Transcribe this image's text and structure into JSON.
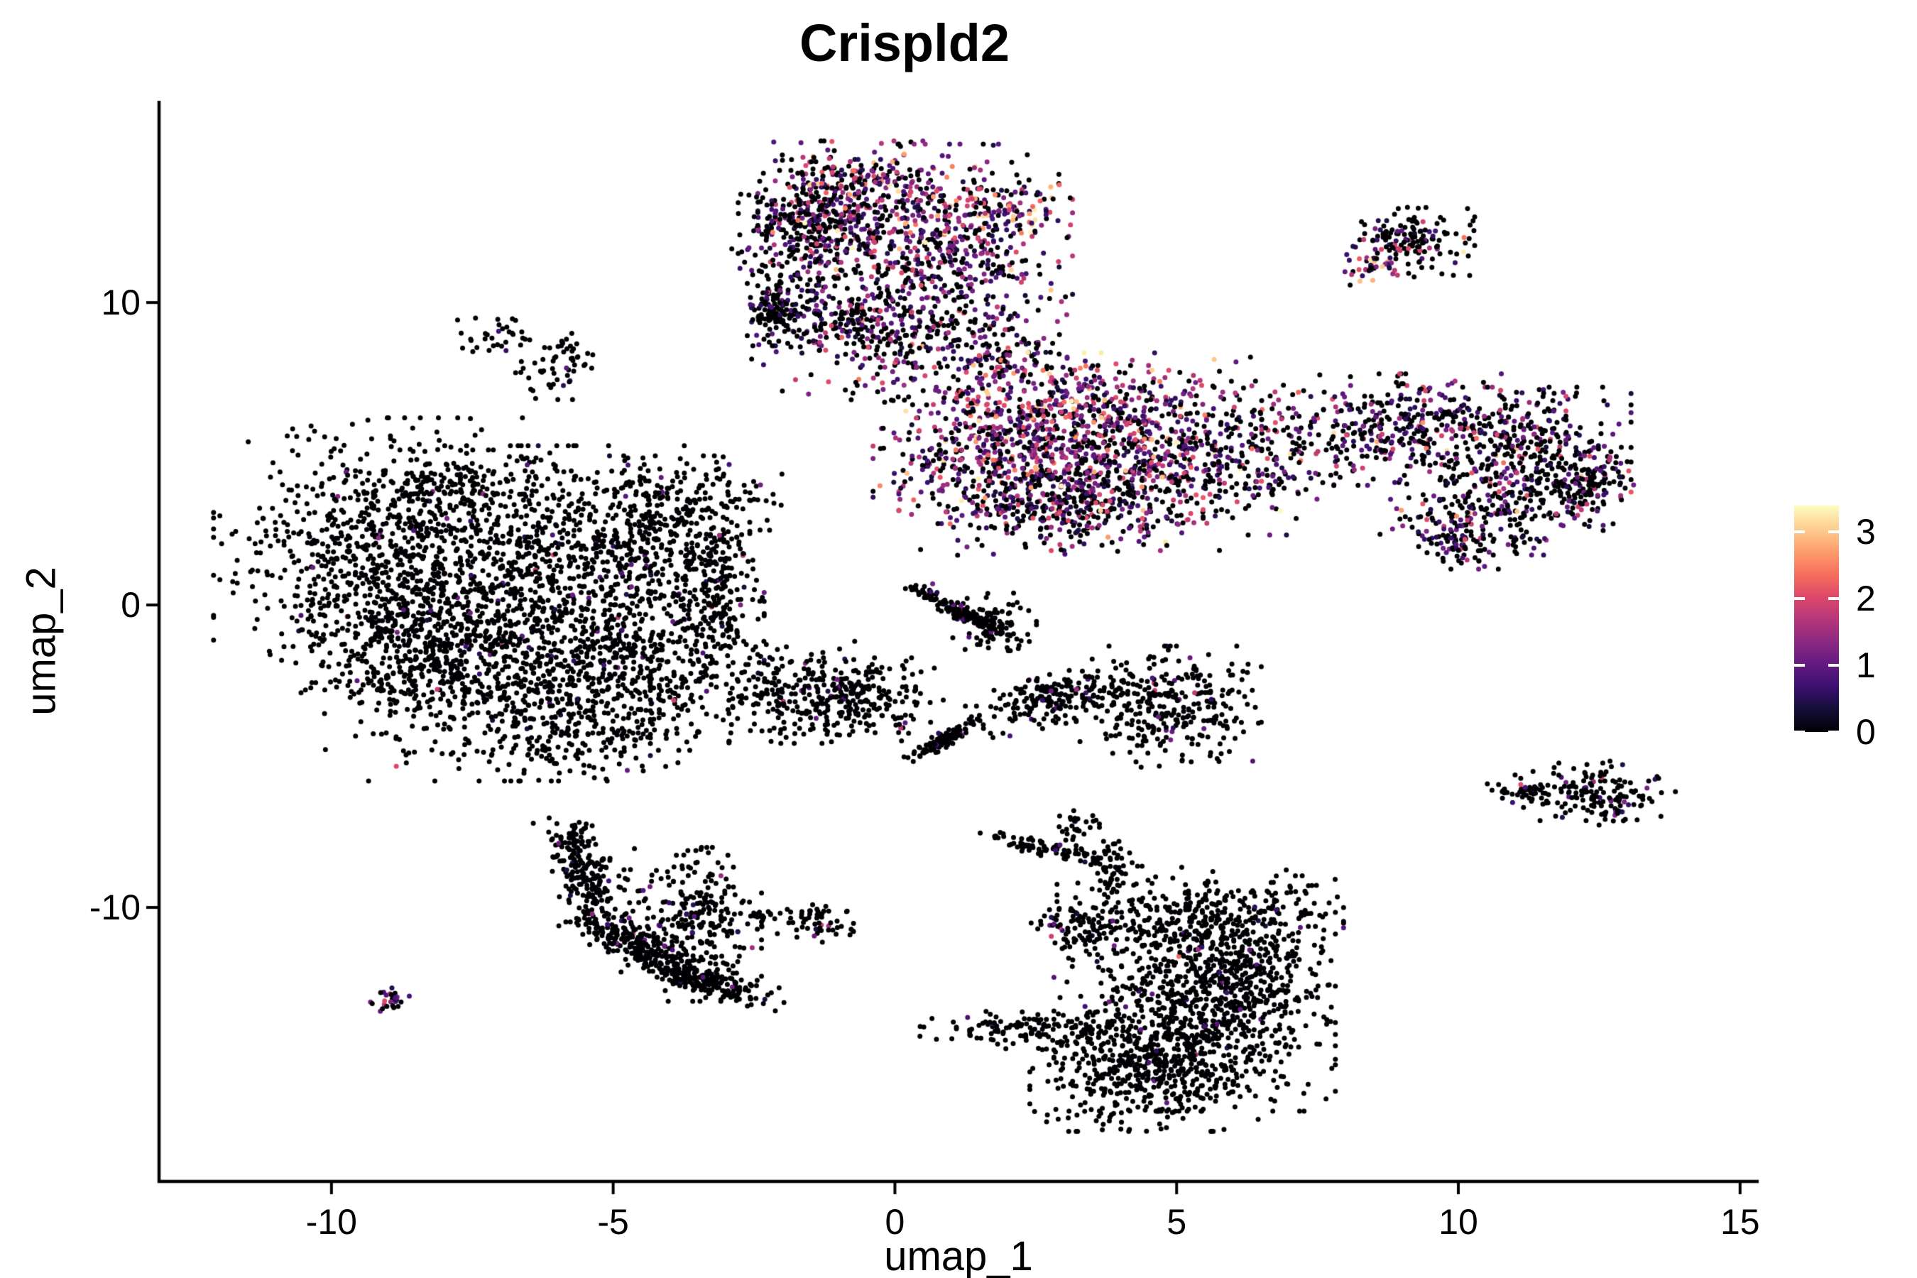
{
  "figure": {
    "title": "Crispld2",
    "x_axis_label": "umap_1",
    "y_axis_label": "umap_2",
    "background_color": "#ffffff",
    "axis_color": "#000000"
  },
  "legend": {
    "tick_labels": [
      "0",
      "1",
      "2",
      "3"
    ],
    "tick_values": [
      0,
      1,
      2,
      3
    ],
    "max_value": 3.39,
    "tick_color": "#ffffff"
  },
  "chart_data": {
    "type": "scatter",
    "title": "Crispld2",
    "xlabel": "umap_1",
    "ylabel": "umap_2",
    "xlim": [
      -13.06,
      15.33
    ],
    "ylim": [
      -19.06,
      16.67
    ],
    "x_ticks": [
      -10,
      -5,
      0,
      5,
      10,
      15
    ],
    "y_ticks": [
      10,
      0,
      -10
    ],
    "grid": false,
    "point_radius_px": 3.5,
    "color_scale": {
      "name": "magma",
      "min": 0,
      "max": 3.4
    },
    "colormap_stops": [
      [
        0.0,
        "#000004"
      ],
      [
        0.1,
        "#140e36"
      ],
      [
        0.2,
        "#3b0f70"
      ],
      [
        0.3,
        "#641a80"
      ],
      [
        0.4,
        "#8c2981"
      ],
      [
        0.5,
        "#b73779"
      ],
      [
        0.6,
        "#de4968"
      ],
      [
        0.7,
        "#f7705c"
      ],
      [
        0.8,
        "#fe9f6d"
      ],
      [
        0.9,
        "#fece91"
      ],
      [
        1.0,
        "#fcfdbf"
      ]
    ],
    "value_bins": {
      "zero": 0,
      "low": [
        0.3,
        1.15
      ],
      "mid": [
        1.15,
        2.15
      ],
      "high": [
        2.15,
        3.4
      ]
    },
    "clusters": [
      {
        "id": "top-a1",
        "x": -0.88,
        "y": 12.96,
        "sx": 0.69,
        "sy": 1.06,
        "rot": 0,
        "n": 350,
        "mix": [
          0.45,
          0.3,
          0.2,
          0.05
        ]
      },
      {
        "id": "top-a2",
        "x": 0.88,
        "y": 11.55,
        "sx": 1.01,
        "sy": 1.64,
        "rot": 0,
        "n": 550,
        "mix": [
          0.42,
          0.31,
          0.23,
          0.04
        ]
      },
      {
        "id": "top-a3",
        "x": -1.77,
        "y": 12.25,
        "sx": 0.5,
        "sy": 1.17,
        "rot": 0,
        "n": 220,
        "mix": [
          0.75,
          0.18,
          0.06,
          0.01
        ]
      },
      {
        "id": "top-a4",
        "x": 0.0,
        "y": 8.97,
        "sx": 1.13,
        "sy": 1.17,
        "rot": 0,
        "n": 280,
        "mix": [
          0.55,
          0.29,
          0.14,
          0.02
        ]
      },
      {
        "id": "top-tail",
        "x": -2.17,
        "y": 9.74,
        "sx": 0.2,
        "sy": 0.52,
        "rot": 0,
        "n": 110,
        "mix": [
          0.8,
          0.15,
          0.05,
          0
        ]
      },
      {
        "id": "top-trail",
        "x": -1.13,
        "y": 9.55,
        "sx": 0.5,
        "sy": 0.59,
        "rot": 0,
        "n": 90,
        "mix": [
          0.6,
          0.3,
          0.1,
          0
        ]
      },
      {
        "id": "top-edge-hot",
        "x": -0.53,
        "y": 13.94,
        "sx": 0.61,
        "sy": 0.33,
        "rot": 0,
        "n": 70,
        "mix": [
          0.15,
          0.25,
          0.35,
          0.25
        ]
      },
      {
        "id": "top-right-edge",
        "x": 1.7,
        "y": 12.96,
        "sx": 0.76,
        "sy": 0.59,
        "rot": 0,
        "n": 120,
        "mix": [
          0.25,
          0.3,
          0.3,
          0.15
        ]
      },
      {
        "id": "tr-small",
        "x": 9.21,
        "y": 12.02,
        "sx": 0.48,
        "sy": 0.52,
        "rot": 0,
        "n": 150,
        "mix": [
          0.72,
          0.2,
          0.07,
          0.01
        ]
      },
      {
        "id": "tr-small-hot",
        "x": 8.55,
        "y": 11.13,
        "sx": 0.25,
        "sy": 0.28,
        "rot": 0,
        "n": 35,
        "mix": [
          0.15,
          0.3,
          0.3,
          0.25
        ]
      },
      {
        "id": "mid-c1",
        "x": 2.02,
        "y": 5.45,
        "sx": 1.07,
        "sy": 1.29,
        "rot": 0,
        "n": 650,
        "mix": [
          0.36,
          0.3,
          0.26,
          0.08
        ]
      },
      {
        "id": "mid-c2",
        "x": 3.78,
        "y": 4.86,
        "sx": 0.88,
        "sy": 1.36,
        "rot": 0,
        "n": 450,
        "mix": [
          0.42,
          0.3,
          0.24,
          0.04
        ]
      },
      {
        "id": "mid-c3-hot",
        "x": 3.47,
        "y": 6.85,
        "sx": 0.82,
        "sy": 0.66,
        "rot": 0,
        "n": 100,
        "mix": [
          0.2,
          0.25,
          0.3,
          0.25
        ]
      },
      {
        "id": "mid-c4",
        "x": 2.77,
        "y": 3.22,
        "sx": 1.2,
        "sy": 0.7,
        "rot": 0,
        "n": 260,
        "mix": [
          0.58,
          0.27,
          0.13,
          0.02
        ]
      },
      {
        "id": "mid-c5",
        "x": 6.24,
        "y": 4.86,
        "sx": 0.82,
        "sy": 1.13,
        "rot": 0,
        "n": 210,
        "mix": [
          0.55,
          0.25,
          0.17,
          0.03
        ]
      },
      {
        "id": "mid-c6",
        "x": 9.21,
        "y": 5.8,
        "sx": 1.2,
        "sy": 0.82,
        "rot": 0,
        "n": 420,
        "mix": [
          0.57,
          0.27,
          0.14,
          0.02
        ]
      },
      {
        "id": "mid-c7",
        "x": 11.22,
        "y": 5.09,
        "sx": 0.82,
        "sy": 0.94,
        "rot": 0,
        "n": 300,
        "mix": [
          0.62,
          0.24,
          0.12,
          0.02
        ]
      },
      {
        "id": "mid-c8",
        "x": 12.3,
        "y": 4.04,
        "sx": 0.4,
        "sy": 0.61,
        "rot": 0,
        "n": 130,
        "mix": [
          0.7,
          0.2,
          0.09,
          0.01
        ]
      },
      {
        "id": "mid-c9",
        "x": 10.59,
        "y": 2.98,
        "sx": 0.88,
        "sy": 0.59,
        "rot": 0,
        "n": 180,
        "mix": [
          0.62,
          0.25,
          0.11,
          0.02
        ]
      },
      {
        "id": "mid-c10",
        "x": 10.15,
        "y": 2.04,
        "sx": 0.38,
        "sy": 0.38,
        "rot": 0,
        "n": 80,
        "mix": [
          0.7,
          0.2,
          0.1,
          0
        ]
      },
      {
        "id": "mid-c11-hot",
        "x": 5.55,
        "y": 6.74,
        "sx": 1.01,
        "sy": 0.7,
        "rot": 0,
        "n": 70,
        "mix": [
          0.25,
          0.25,
          0.3,
          0.2
        ]
      },
      {
        "id": "mid-c12",
        "x": 5.04,
        "y": 4.51,
        "sx": 0.5,
        "sy": 0.94,
        "rot": 0,
        "n": 90,
        "mix": [
          0.5,
          0.25,
          0.2,
          0.05
        ]
      },
      {
        "id": "left-d1",
        "x": -8.83,
        "y": 1.69,
        "sx": 1.45,
        "sy": 2.0,
        "rot": 0,
        "n": 850,
        "mix": [
          0.975,
          0.02,
          0.005,
          0
        ]
      },
      {
        "id": "left-d2",
        "x": -6.31,
        "y": 0.52,
        "sx": 1.45,
        "sy": 2.11,
        "rot": 0,
        "n": 750,
        "mix": [
          0.975,
          0.02,
          0.005,
          0
        ]
      },
      {
        "id": "left-d3",
        "x": -4.54,
        "y": 1.69,
        "sx": 1.01,
        "sy": 1.41,
        "rot": 0,
        "n": 350,
        "mix": [
          0.97,
          0.025,
          0.005,
          0
        ]
      },
      {
        "id": "left-d4",
        "x": -7.31,
        "y": -2.65,
        "sx": 1.32,
        "sy": 1.41,
        "rot": 0,
        "n": 450,
        "mix": [
          0.975,
          0.02,
          0.005,
          0
        ]
      },
      {
        "id": "left-d5",
        "x": -4.79,
        "y": -2.42,
        "sx": 0.82,
        "sy": 1.06,
        "rot": 0,
        "n": 260,
        "mix": [
          0.97,
          0.025,
          0.005,
          0
        ]
      },
      {
        "id": "left-d6",
        "x": -3.22,
        "y": 0.05,
        "sx": 0.4,
        "sy": 1.53,
        "rot": 0,
        "n": 220,
        "mix": [
          0.94,
          0.045,
          0.015,
          0
        ]
      },
      {
        "id": "left-d7",
        "x": -3.85,
        "y": 3.45,
        "sx": 0.82,
        "sy": 0.66,
        "rot": 0,
        "n": 150,
        "mix": [
          0.96,
          0.03,
          0.01,
          0
        ]
      },
      {
        "id": "left-d8",
        "x": -5.42,
        "y": -4.41,
        "sx": 1.07,
        "sy": 0.7,
        "rot": 0,
        "n": 130,
        "mix": [
          0.97,
          0.025,
          0.005,
          0
        ]
      },
      {
        "id": "left-d9",
        "x": -7.69,
        "y": 3.8,
        "sx": 1.01,
        "sy": 0.59,
        "rot": 0,
        "n": 150,
        "mix": [
          0.975,
          0.02,
          0.005,
          0
        ]
      },
      {
        "id": "left-d10",
        "x": -8.83,
        "y": -1.13,
        "sx": 0.76,
        "sy": 0.94,
        "rot": 0,
        "n": 200,
        "mix": [
          0.975,
          0.02,
          0.005,
          0
        ]
      },
      {
        "id": "chain-e1",
        "x": -1.77,
        "y": -2.89,
        "sx": 0.95,
        "sy": 0.75,
        "rot": 0,
        "n": 280,
        "mix": [
          0.95,
          0.04,
          0.01,
          0
        ]
      },
      {
        "id": "chain-e2",
        "x": -0.32,
        "y": -3.12,
        "sx": 0.57,
        "sy": 0.61,
        "rot": 0,
        "n": 130,
        "mix": [
          0.94,
          0.04,
          0.02,
          0
        ]
      },
      {
        "id": "streak-e3",
        "x": 1.28,
        "y": -0.34,
        "sx": 0.62,
        "sy": 0.1,
        "rot": -45,
        "n": 150,
        "mix": [
          0.96,
          0.03,
          0.01,
          0
        ]
      },
      {
        "id": "blob-e4",
        "x": 1.77,
        "y": -0.66,
        "sx": 0.33,
        "sy": 0.47,
        "rot": 0,
        "n": 70,
        "mix": [
          0.95,
          0.05,
          0,
          0
        ]
      },
      {
        "id": "streak-e5",
        "x": 0.88,
        "y": -4.46,
        "sx": 0.4,
        "sy": 0.1,
        "rot": 48,
        "n": 110,
        "mix": [
          0.97,
          0.03,
          0,
          0
        ]
      },
      {
        "id": "band-e6",
        "x": 2.84,
        "y": -3.12,
        "sx": 0.7,
        "sy": 0.35,
        "rot": 29,
        "n": 200,
        "mix": [
          0.95,
          0.04,
          0.01,
          0
        ]
      },
      {
        "id": "mid-f1",
        "x": 4.86,
        "y": -3.36,
        "sx": 0.73,
        "sy": 0.89,
        "rot": 0,
        "n": 300,
        "mix": [
          0.96,
          0.03,
          0.01,
          0
        ]
      },
      {
        "id": "hook-g1a",
        "x": -5.4,
        "y": -9.3,
        "sx": 0.25,
        "sy": 1.0,
        "rot": 12,
        "n": 160,
        "mix": [
          0.97,
          0.025,
          0.005,
          0
        ]
      },
      {
        "id": "hook-g1b",
        "x": -4.51,
        "y": -11.27,
        "sx": 0.75,
        "sy": 0.22,
        "rot": -47,
        "n": 200,
        "mix": [
          0.97,
          0.025,
          0.005,
          0
        ]
      },
      {
        "id": "hook-g1c",
        "x": -3.38,
        "y": -12.44,
        "sx": 0.7,
        "sy": 0.2,
        "rot": -29,
        "n": 180,
        "mix": [
          0.97,
          0.025,
          0.005,
          0
        ]
      },
      {
        "id": "hook-g2",
        "x": -3.38,
        "y": -10.56,
        "sx": 0.45,
        "sy": 1.13,
        "rot": 0,
        "n": 220,
        "mix": [
          0.965,
          0.03,
          0.005,
          0
        ]
      },
      {
        "id": "hook-g3",
        "x": -4.48,
        "y": -9.86,
        "sx": 0.66,
        "sy": 0.99,
        "rot": 0,
        "n": 80,
        "mix": [
          0.93,
          0.05,
          0.02,
          0
        ]
      },
      {
        "id": "hook-g4",
        "x": -5.8,
        "y": -7.98,
        "sx": 0.2,
        "sy": 0.47,
        "rot": 0,
        "n": 60,
        "mix": [
          0.95,
          0.05,
          0,
          0
        ]
      },
      {
        "id": "dash-h1",
        "x": -1.39,
        "y": -10.45,
        "sx": 0.33,
        "sy": 0.31,
        "rot": 0,
        "n": 60,
        "mix": [
          0.85,
          0.08,
          0.07,
          0
        ]
      },
      {
        "id": "dash-h2",
        "x": -2.5,
        "y": -10.28,
        "sx": 0.18,
        "sy": 0.16,
        "rot": 0,
        "n": 16,
        "mix": [
          1.0,
          0,
          0,
          0
        ]
      },
      {
        "id": "br-i1",
        "x": 5.42,
        "y": -10.21,
        "sx": 1.13,
        "sy": 0.7,
        "rot": 0,
        "n": 340,
        "mix": [
          0.975,
          0.02,
          0.005,
          0
        ]
      },
      {
        "id": "br-i2",
        "x": 3.23,
        "y": -10.66,
        "sx": 0.45,
        "sy": 0.31,
        "rot": 0,
        "n": 80,
        "mix": [
          0.94,
          0.04,
          0.02,
          0
        ]
      },
      {
        "id": "br-i3",
        "x": 2.8,
        "y": -8.08,
        "sx": 0.62,
        "sy": 0.12,
        "rot": -21,
        "n": 90,
        "mix": [
          0.96,
          0.03,
          0.01,
          0
        ]
      },
      {
        "id": "br-i4",
        "x": 3.18,
        "y": -7.37,
        "sx": 0.2,
        "sy": 0.26,
        "rot": 0,
        "n": 30,
        "mix": [
          0.97,
          0.03,
          0,
          0
        ]
      },
      {
        "id": "br-i5",
        "x": 3.86,
        "y": -8.83,
        "sx": 0.16,
        "sy": 0.45,
        "rot": 0,
        "n": 50,
        "mix": [
          0.97,
          0.03,
          0,
          0
        ]
      },
      {
        "id": "br-i6",
        "x": 5.32,
        "y": -13.45,
        "sx": 1.11,
        "sy": 1.46,
        "rot": 0,
        "n": 750,
        "mix": [
          0.985,
          0.012,
          0.003,
          0
        ]
      },
      {
        "id": "br-i7",
        "x": 2.65,
        "y": -13.97,
        "sx": 0.98,
        "sy": 0.31,
        "rot": 0,
        "n": 140,
        "mix": [
          0.97,
          0.03,
          0,
          0
        ]
      },
      {
        "id": "br-i8",
        "x": 6.33,
        "y": -11.97,
        "sx": 0.61,
        "sy": 0.85,
        "rot": 0,
        "n": 220,
        "mix": [
          0.985,
          0.012,
          0.003,
          0
        ]
      },
      {
        "id": "br-i9",
        "x": 4.6,
        "y": -15.49,
        "sx": 0.98,
        "sy": 0.85,
        "rot": 0,
        "n": 400,
        "mix": [
          0.99,
          0.01,
          0,
          0
        ]
      },
      {
        "id": "tiny-j1",
        "x": -8.88,
        "y": -13.05,
        "sx": 0.19,
        "sy": 0.21,
        "rot": 0,
        "n": 26,
        "mix": [
          0.45,
          0.3,
          0.25,
          0
        ]
      },
      {
        "id": "rdash-k1",
        "x": 12.48,
        "y": -6.22,
        "sx": 0.61,
        "sy": 0.47,
        "rot": 0,
        "n": 150,
        "mix": [
          0.9,
          0.07,
          0.03,
          0
        ]
      },
      {
        "id": "rdash-k2",
        "x": 11.25,
        "y": -6.06,
        "sx": 0.35,
        "sy": 0.21,
        "rot": 0,
        "n": 40,
        "mix": [
          0.95,
          0.05,
          0,
          0
        ]
      },
      {
        "id": "speck-l1",
        "x": -7.06,
        "y": 8.92,
        "sx": 0.44,
        "sy": 0.28,
        "rot": 0,
        "n": 32,
        "mix": [
          0.9,
          0.08,
          0.02,
          0
        ]
      },
      {
        "id": "speck-l2",
        "x": -5.9,
        "y": 8.19,
        "sx": 0.33,
        "sy": 0.47,
        "rot": 0,
        "n": 40,
        "mix": [
          0.9,
          0.08,
          0.02,
          0
        ]
      },
      {
        "id": "speck-l3",
        "x": -6.33,
        "y": 7.42,
        "sx": 0.38,
        "sy": 0.28,
        "rot": 0,
        "n": 18,
        "mix": [
          0.95,
          0.05,
          0,
          0
        ]
      },
      {
        "id": "bridge-m1",
        "x": 2.02,
        "y": 8.15,
        "sx": 0.4,
        "sy": 0.66,
        "rot": 0,
        "n": 55,
        "mix": [
          0.45,
          0.25,
          0.2,
          0.1
        ]
      }
    ],
    "singles": [
      {
        "x": 5.04,
        "y": -11.62,
        "v": 2.3
      },
      {
        "x": -2.74,
        "y": 0.0,
        "v": 1.2
      },
      {
        "x": 2.75,
        "y": -10.59,
        "v": 1.0
      },
      {
        "x": 2.93,
        "y": -7.93,
        "v": 0.9
      },
      {
        "x": -1.98,
        "y": -3.19,
        "v": 1.6
      },
      {
        "x": 0.67,
        "y": 0.7,
        "v": 1.1
      },
      {
        "x": 1.74,
        "y": -13.85,
        "v": 0.7
      },
      {
        "x": 11.96,
        "y": -6.34,
        "v": 1.0
      },
      {
        "x": 12.71,
        "y": -6.48,
        "v": 1.1
      },
      {
        "x": 4.33,
        "y": -12.77,
        "v": 0.6
      },
      {
        "x": 5.89,
        "y": -12.82,
        "v": 0.7
      }
    ]
  }
}
